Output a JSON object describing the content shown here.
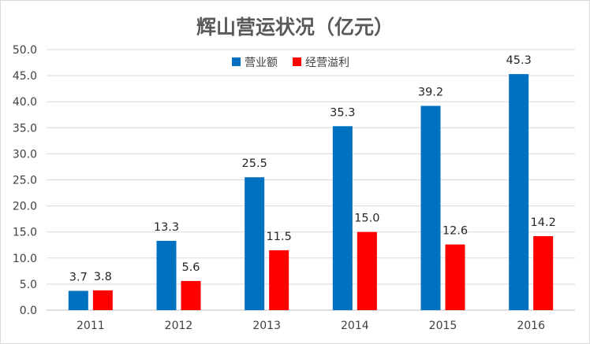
{
  "chart_data": {
    "type": "bar",
    "title": "辉山营运状况（亿元）",
    "xlabel": "",
    "ylabel": "",
    "ylim": [
      0,
      50
    ],
    "yticks": [
      "0.0",
      "5.0",
      "10.0",
      "15.0",
      "20.0",
      "25.0",
      "30.0",
      "35.0",
      "40.0",
      "45.0",
      "50.0"
    ],
    "categories": [
      "2011",
      "2012",
      "2013",
      "2014",
      "2015",
      "2016"
    ],
    "series": [
      {
        "name": "营业额",
        "color": "#0070C0",
        "values": [
          3.7,
          13.3,
          25.5,
          35.3,
          39.2,
          45.3
        ],
        "labels": [
          "3.7",
          "13.3",
          "25.5",
          "35.3",
          "39.2",
          "45.3"
        ]
      },
      {
        "name": "经营溢利",
        "color": "#FF0000",
        "values": [
          3.8,
          5.6,
          11.5,
          15.0,
          12.6,
          14.2
        ],
        "labels": [
          "3.8",
          "5.6",
          "11.5",
          "15.0",
          "12.6",
          "14.2"
        ]
      }
    ],
    "legend_position": "top-center",
    "grid": true
  }
}
